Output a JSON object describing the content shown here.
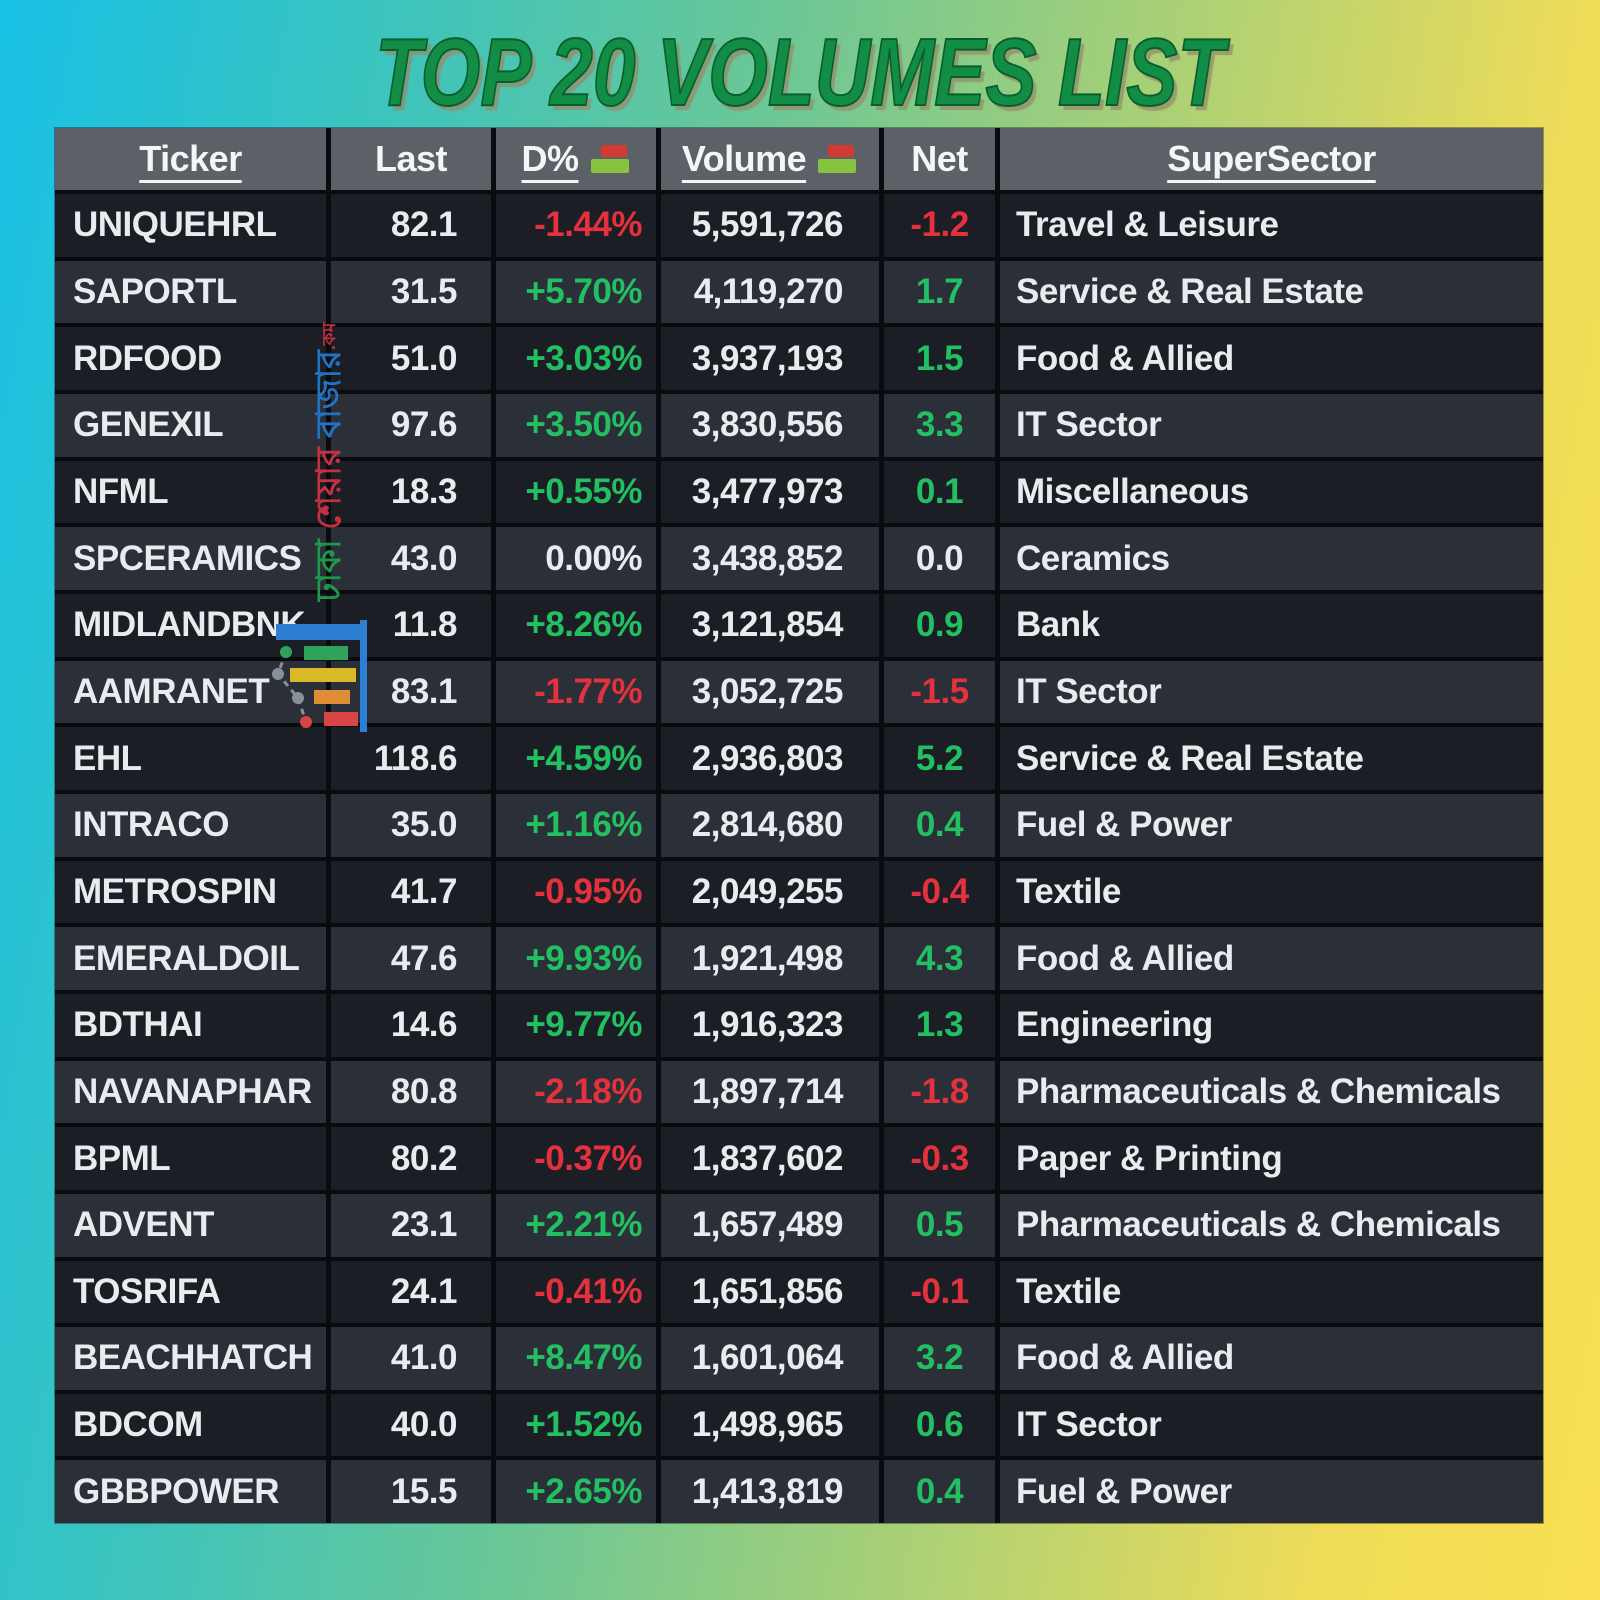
{
  "title": "TOP 20 VOLUMES LIST",
  "colors": {
    "title_green": "#128d46",
    "accent_green": "#22c063",
    "accent_red": "#e3323d",
    "neutral_text": "#e9ebee",
    "header_bg": "#5c6167",
    "row_dark": "#1b1e24",
    "row_light": "#2b2f37",
    "bg_gradient_left": "#18c1e6",
    "bg_gradient_right": "#f9e052",
    "sort_icon_red": "#d23b34",
    "sort_icon_green": "#86c440"
  },
  "watermark": {
    "words": [
      "ঢাকা",
      "শেয়ার",
      "বাজার",
      ".কম"
    ],
    "logo": "bar-chart-logo"
  },
  "table": {
    "columns": [
      {
        "label": "Ticker",
        "underline": true,
        "sort_icon": false
      },
      {
        "label": "Last",
        "underline": false,
        "sort_icon": false
      },
      {
        "label": "D%",
        "underline": true,
        "sort_icon": true
      },
      {
        "label": "Volume",
        "underline": true,
        "sort_icon": true
      },
      {
        "label": "Net",
        "underline": false,
        "sort_icon": false
      },
      {
        "label": "SuperSector",
        "underline": true,
        "sort_icon": false
      }
    ],
    "rows": [
      {
        "ticker": "UNIQUEHRL",
        "last": "82.1",
        "change": "-1.44%",
        "volume": "5,591,726",
        "net": "-1.2",
        "sector": "Travel & Leisure"
      },
      {
        "ticker": "SAPORTL",
        "last": "31.5",
        "change": "+5.70%",
        "volume": "4,119,270",
        "net": "1.7",
        "sector": "Service & Real Estate"
      },
      {
        "ticker": "RDFOOD",
        "last": "51.0",
        "change": "+3.03%",
        "volume": "3,937,193",
        "net": "1.5",
        "sector": "Food & Allied"
      },
      {
        "ticker": "GENEXIL",
        "last": "97.6",
        "change": "+3.50%",
        "volume": "3,830,556",
        "net": "3.3",
        "sector": "IT Sector"
      },
      {
        "ticker": "NFML",
        "last": "18.3",
        "change": "+0.55%",
        "volume": "3,477,973",
        "net": "0.1",
        "sector": "Miscellaneous"
      },
      {
        "ticker": "SPCERAMICS",
        "last": "43.0",
        "change": "0.00%",
        "volume": "3,438,852",
        "net": "0.0",
        "sector": "Ceramics"
      },
      {
        "ticker": "MIDLANDBNK",
        "last": "11.8",
        "change": "+8.26%",
        "volume": "3,121,854",
        "net": "0.9",
        "sector": "Bank"
      },
      {
        "ticker": "AAMRANET",
        "last": "83.1",
        "change": "-1.77%",
        "volume": "3,052,725",
        "net": "-1.5",
        "sector": "IT Sector"
      },
      {
        "ticker": "EHL",
        "last": "118.6",
        "change": "+4.59%",
        "volume": "2,936,803",
        "net": "5.2",
        "sector": "Service & Real Estate"
      },
      {
        "ticker": "INTRACO",
        "last": "35.0",
        "change": "+1.16%",
        "volume": "2,814,680",
        "net": "0.4",
        "sector": "Fuel & Power"
      },
      {
        "ticker": "METROSPIN",
        "last": "41.7",
        "change": "-0.95%",
        "volume": "2,049,255",
        "net": "-0.4",
        "sector": "Textile"
      },
      {
        "ticker": "EMERALDOIL",
        "last": "47.6",
        "change": "+9.93%",
        "volume": "1,921,498",
        "net": "4.3",
        "sector": "Food & Allied"
      },
      {
        "ticker": "BDTHAI",
        "last": "14.6",
        "change": "+9.77%",
        "volume": "1,916,323",
        "net": "1.3",
        "sector": "Engineering"
      },
      {
        "ticker": "NAVANAPHAR",
        "last": "80.8",
        "change": "-2.18%",
        "volume": "1,897,714",
        "net": "-1.8",
        "sector": "Pharmaceuticals & Chemicals"
      },
      {
        "ticker": "BPML",
        "last": "80.2",
        "change": "-0.37%",
        "volume": "1,837,602",
        "net": "-0.3",
        "sector": "Paper & Printing"
      },
      {
        "ticker": "ADVENT",
        "last": "23.1",
        "change": "+2.21%",
        "volume": "1,657,489",
        "net": "0.5",
        "sector": "Pharmaceuticals & Chemicals"
      },
      {
        "ticker": "TOSRIFA",
        "last": "24.1",
        "change": "-0.41%",
        "volume": "1,651,856",
        "net": "-0.1",
        "sector": "Textile"
      },
      {
        "ticker": "BEACHHATCH",
        "last": "41.0",
        "change": "+8.47%",
        "volume": "1,601,064",
        "net": "3.2",
        "sector": "Food & Allied"
      },
      {
        "ticker": "BDCOM",
        "last": "40.0",
        "change": "+1.52%",
        "volume": "1,498,965",
        "net": "0.6",
        "sector": "IT Sector"
      },
      {
        "ticker": "GBBPOWER",
        "last": "15.5",
        "change": "+2.65%",
        "volume": "1,413,819",
        "net": "0.4",
        "sector": "Fuel & Power"
      }
    ]
  }
}
